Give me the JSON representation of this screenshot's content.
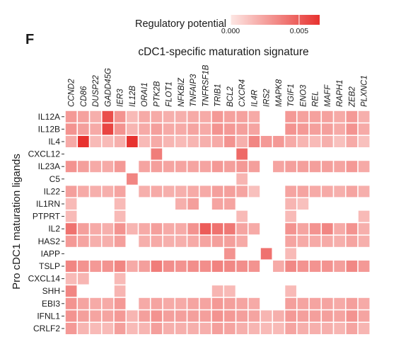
{
  "panel_letter": "F",
  "chart_data": {
    "type": "heatmap",
    "title": "cDC1-specific maturation signature",
    "ylabel": "Pro cDC1 maturation ligands",
    "xlabel": "",
    "legend": {
      "title": "Regulatory potential",
      "ticks": [
        "0.000",
        "0.005"
      ],
      "tick_values": [
        0,
        0.005
      ],
      "range": [
        0,
        0.0065
      ],
      "color_low": "#fde7e4",
      "color_high": "#e7322f"
    },
    "columns": [
      "CCND2",
      "CD86",
      "DUSP22",
      "GADD45G",
      "IER3",
      "IL12B",
      "ORAI1",
      "PTK2B",
      "FLOT1",
      "NFKBIZ",
      "TNFAIP3",
      "TNFRSF1B",
      "TRIB1",
      "BCL2",
      "CXCR4",
      "IL4R",
      "IRS2",
      "MAPK8",
      "TGIF1",
      "ENO3",
      "REL",
      "MAFF",
      "RAPH1",
      "ZEB2",
      "PLXNC1"
    ],
    "rows": [
      "IL12A",
      "IL12B",
      "IL4",
      "CXCL12",
      "IL23A",
      "C5",
      "IL22",
      "IL1RN",
      "PTPRT",
      "IL2",
      "HAS2",
      "IAPP",
      "TSLP",
      "CXCL14",
      "SHH",
      "EBI3",
      "IFNL1",
      "CRLF2"
    ],
    "values": [
      [
        0.0028,
        0.0025,
        0.002,
        0.0055,
        0.003,
        0.0016,
        0.0022,
        0.0022,
        0.002,
        0.002,
        0.0022,
        0.0022,
        0.0028,
        0.0025,
        0.0025,
        0.0022,
        null,
        null,
        0.0028,
        0.0025,
        0.0025,
        0.0025,
        0.0022,
        0.0028,
        0.002
      ],
      [
        0.003,
        0.0026,
        0.0022,
        0.0058,
        0.003,
        0.0018,
        0.0022,
        0.0026,
        0.0022,
        0.0022,
        0.0024,
        0.0022,
        0.003,
        0.0028,
        0.0026,
        0.0024,
        null,
        null,
        0.003,
        0.0028,
        0.0026,
        0.0026,
        0.0022,
        0.003,
        0.0022
      ],
      [
        0.0022,
        0.0065,
        0.0016,
        0.0016,
        0.002,
        0.0065,
        0.0016,
        0.0022,
        0.0018,
        0.0016,
        0.0018,
        0.002,
        0.0022,
        0.003,
        0.002,
        0.0035,
        0.0028,
        0.0028,
        0.0022,
        0.0018,
        0.0016,
        0.002,
        0.0014,
        0.0022,
        0.0014
      ],
      [
        null,
        null,
        null,
        null,
        null,
        null,
        null,
        0.0038,
        null,
        null,
        null,
        null,
        null,
        null,
        0.0045,
        null,
        null,
        null,
        null,
        null,
        null,
        null,
        null,
        null,
        null
      ],
      [
        0.003,
        0.0026,
        0.0022,
        0.0022,
        0.0028,
        null,
        0.0024,
        0.0026,
        0.0024,
        0.0024,
        0.0024,
        0.0024,
        0.0028,
        0.0026,
        0.0028,
        0.0026,
        null,
        0.0024,
        0.0026,
        0.0026,
        0.0026,
        0.0026,
        0.0024,
        0.0028,
        0.0022
      ],
      [
        null,
        null,
        null,
        null,
        null,
        0.0035,
        null,
        null,
        null,
        null,
        null,
        null,
        null,
        null,
        0.0018,
        null,
        null,
        null,
        null,
        null,
        null,
        null,
        null,
        null,
        null
      ],
      [
        0.0026,
        0.0022,
        0.002,
        0.002,
        0.0024,
        null,
        0.002,
        0.0022,
        0.002,
        0.002,
        0.0022,
        0.0022,
        0.0026,
        0.0026,
        0.0024,
        0.0014,
        null,
        null,
        0.0024,
        0.0024,
        0.0022,
        0.0022,
        0.002,
        0.0024,
        0.002
      ],
      [
        0.0016,
        null,
        null,
        null,
        0.0016,
        null,
        null,
        null,
        null,
        0.002,
        0.0026,
        null,
        0.0024,
        0.0024,
        null,
        null,
        null,
        null,
        0.0018,
        0.0014,
        null,
        null,
        null,
        null,
        null
      ],
      [
        0.0016,
        null,
        null,
        null,
        0.0016,
        null,
        null,
        null,
        null,
        null,
        null,
        null,
        null,
        null,
        0.0016,
        null,
        null,
        null,
        0.0016,
        null,
        null,
        null,
        null,
        null,
        0.0016
      ],
      [
        0.0042,
        0.0026,
        0.0022,
        0.002,
        0.003,
        0.0018,
        0.0022,
        0.0026,
        0.0022,
        0.0022,
        0.003,
        0.005,
        0.0042,
        0.004,
        0.0024,
        0.0022,
        null,
        null,
        0.003,
        0.0024,
        0.003,
        0.0035,
        0.0022,
        0.003,
        0.002
      ],
      [
        0.0028,
        0.0024,
        0.002,
        0.002,
        0.0026,
        null,
        0.002,
        0.0022,
        0.002,
        0.002,
        0.0022,
        0.0024,
        0.0026,
        0.0026,
        0.0022,
        null,
        null,
        null,
        0.0024,
        0.0022,
        0.0022,
        0.0022,
        0.002,
        0.0024,
        0.002
      ],
      [
        null,
        null,
        null,
        null,
        null,
        null,
        null,
        null,
        null,
        null,
        null,
        null,
        null,
        0.003,
        null,
        null,
        0.0042,
        null,
        0.0016,
        null,
        null,
        null,
        null,
        null,
        null
      ],
      [
        0.0035,
        0.003,
        0.0028,
        0.003,
        0.0035,
        0.0022,
        0.0026,
        0.0038,
        0.0032,
        0.003,
        0.0032,
        0.0032,
        0.0036,
        0.0034,
        0.0032,
        0.003,
        null,
        0.0022,
        0.0034,
        0.003,
        0.003,
        0.003,
        0.0026,
        0.0034,
        0.0028
      ],
      [
        0.0016,
        0.0018,
        null,
        null,
        0.0016,
        null,
        null,
        null,
        null,
        null,
        null,
        null,
        null,
        null,
        null,
        null,
        null,
        null,
        null,
        null,
        null,
        null,
        null,
        null,
        null
      ],
      [
        0.0035,
        null,
        null,
        null,
        0.0018,
        null,
        null,
        null,
        null,
        null,
        null,
        null,
        0.0018,
        0.0016,
        null,
        null,
        null,
        null,
        0.0016,
        null,
        null,
        null,
        null,
        null,
        null
      ],
      [
        0.003,
        0.0024,
        0.0022,
        0.0022,
        0.0028,
        null,
        0.0022,
        0.0024,
        0.0022,
        0.0022,
        0.0024,
        0.0024,
        0.0028,
        0.0026,
        0.0024,
        0.0022,
        null,
        null,
        0.0026,
        0.0024,
        0.0024,
        0.0024,
        0.0022,
        0.0026,
        0.0022
      ],
      [
        0.003,
        0.0026,
        0.0024,
        0.0024,
        0.0028,
        0.0018,
        0.0026,
        0.003,
        0.0026,
        0.0026,
        0.0026,
        0.0026,
        0.003,
        0.0028,
        0.0026,
        0.0024,
        0.0018,
        0.002,
        0.0028,
        0.0026,
        0.0026,
        0.0026,
        0.0024,
        0.003,
        0.0024
      ],
      [
        0.0028,
        0.0018,
        0.0016,
        0.0016,
        0.0026,
        0.0016,
        0.0018,
        0.0026,
        0.002,
        0.002,
        0.002,
        0.002,
        0.0026,
        0.0024,
        0.002,
        0.0018,
        0.0016,
        0.0016,
        0.0024,
        0.002,
        0.002,
        0.002,
        0.0018,
        0.0024,
        0.0018
      ]
    ]
  }
}
